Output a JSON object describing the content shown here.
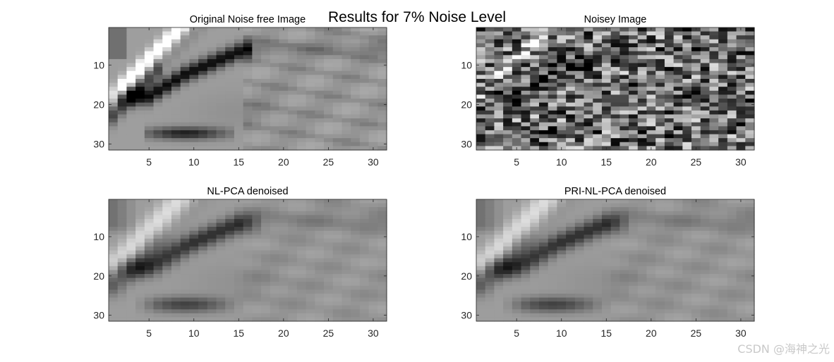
{
  "figure": {
    "suptitle": "Results for 7% Noise Level",
    "watermark": "CSDN @海神之光"
  },
  "chart_data": [
    {
      "type": "heatmap",
      "title": "Original Noise free Image",
      "colormap": "gray",
      "rows": 31,
      "cols": 31,
      "xticks": [
        5,
        10,
        15,
        20,
        25,
        30
      ],
      "yticks": [
        10,
        20,
        30
      ],
      "xlim": [
        0.5,
        31.5
      ],
      "ylim": [
        0.5,
        31.5
      ],
      "content": "smooth grayscale pattern: bright diagonal stripe top-left, dark curved bands near rows 10-18 and 27, faint diagonal streaks on the right"
    },
    {
      "type": "heatmap",
      "title": "Noisey Image",
      "colormap": "gray",
      "rows": 31,
      "cols": 31,
      "xticks": [
        5,
        10,
        15,
        20,
        25,
        30
      ],
      "yticks": [
        10,
        20,
        30
      ],
      "xlim": [
        0.5,
        31.5
      ],
      "ylim": [
        0.5,
        31.5
      ],
      "content": "same pattern corrupted by strong random pixel noise"
    },
    {
      "type": "heatmap",
      "title": "NL-PCA denoised",
      "colormap": "gray",
      "rows": 31,
      "cols": 31,
      "xticks": [
        5,
        10,
        15,
        20,
        25,
        30
      ],
      "yticks": [
        10,
        20,
        30
      ],
      "xlim": [
        0.5,
        31.5
      ],
      "ylim": [
        0.5,
        31.5
      ],
      "content": "smoothed reconstruction of the original pattern"
    },
    {
      "type": "heatmap",
      "title": "PRI-NL-PCA denoised",
      "colormap": "gray",
      "rows": 31,
      "cols": 31,
      "xticks": [
        5,
        10,
        15,
        20,
        25,
        30
      ],
      "yticks": [
        10,
        20,
        30
      ],
      "xlim": [
        0.5,
        31.5
      ],
      "ylim": [
        0.5,
        31.5
      ],
      "content": "smoothed reconstruction of the original pattern"
    }
  ]
}
